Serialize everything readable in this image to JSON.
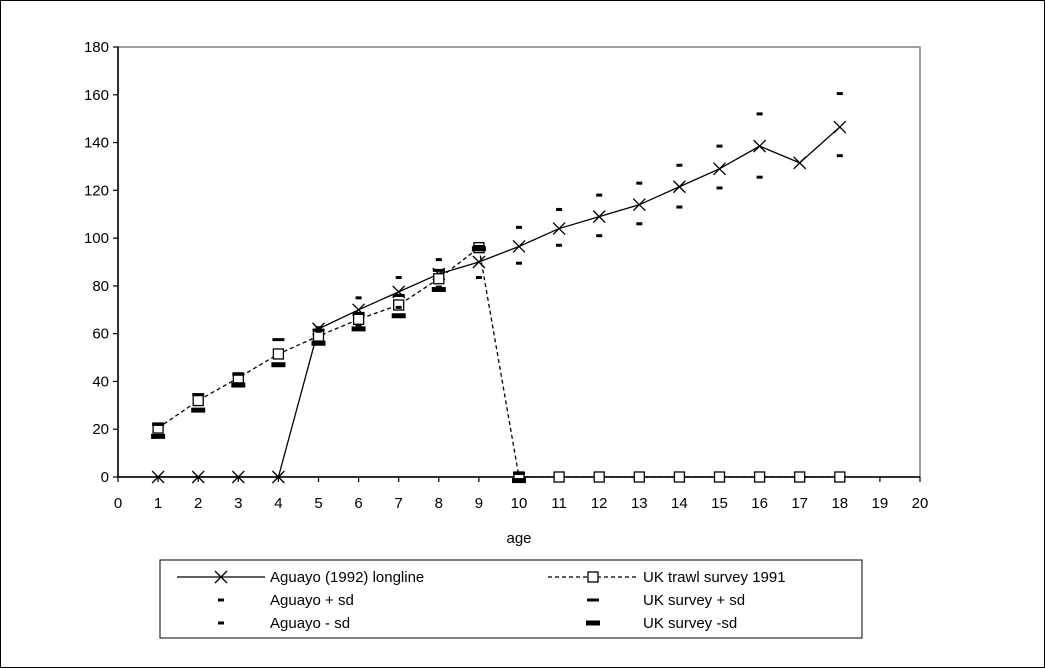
{
  "chart_data": {
    "type": "line",
    "title": "",
    "xlabel": "age",
    "ylabel": "",
    "xlim": [
      0,
      20
    ],
    "ylim": [
      0,
      180
    ],
    "x_ticks": [
      0,
      1,
      2,
      3,
      4,
      5,
      6,
      7,
      8,
      9,
      10,
      11,
      12,
      13,
      14,
      15,
      16,
      17,
      18,
      19,
      20
    ],
    "y_ticks": [
      0,
      20,
      40,
      60,
      80,
      100,
      120,
      140,
      160,
      180
    ],
    "grid": false,
    "legend_position": "bottom",
    "series": [
      {
        "name": "Aguayo (1992) longline",
        "marker": "x",
        "line": "solid",
        "color": "#000000",
        "x": [
          1,
          2,
          3,
          4,
          5,
          6,
          7,
          8,
          9,
          10,
          11,
          12,
          13,
          14,
          15,
          16,
          17,
          18
        ],
        "values": [
          0,
          0,
          0,
          0,
          62,
          70,
          77.5,
          85,
          90,
          96.5,
          104,
          109,
          114,
          121.5,
          129,
          138.5,
          131.5,
          146.5
        ]
      },
      {
        "name": "UK trawl survey 1991",
        "marker": "square",
        "line": "dashed",
        "color": "#000000",
        "x": [
          1,
          2,
          3,
          4,
          5,
          6,
          7,
          8,
          9,
          10,
          11,
          12,
          13,
          14,
          15,
          16,
          17,
          18
        ],
        "values": [
          20.5,
          32,
          41.5,
          51.5,
          59,
          66,
          72,
          83,
          96,
          0,
          0,
          0,
          0,
          0,
          0,
          0,
          0,
          0
        ]
      },
      {
        "name": "Aguayo + sd",
        "marker": "dash-small",
        "line": "none",
        "color": "#000000",
        "x": [
          5,
          6,
          7,
          8,
          9,
          10,
          11,
          12,
          13,
          14,
          15,
          16,
          18
        ],
        "values": [
          62.5,
          75,
          83.5,
          91,
          96,
          104.5,
          112,
          118,
          123,
          130.5,
          138.5,
          152,
          160.5
        ]
      },
      {
        "name": "Aguayo - sd",
        "marker": "dash-small",
        "line": "none",
        "color": "#000000",
        "x": [
          5,
          6,
          7,
          8,
          9,
          10,
          11,
          12,
          13,
          14,
          15,
          16,
          18
        ],
        "values": [
          61,
          63.5,
          71,
          79.5,
          83.5,
          89.5,
          97,
          101,
          106,
          113,
          121,
          125.5,
          134.5
        ]
      },
      {
        "name": "UK survey + sd",
        "marker": "dash-medium",
        "line": "none",
        "color": "#000000",
        "x": [
          1,
          2,
          3,
          4,
          5,
          6,
          7,
          8,
          9,
          10
        ],
        "values": [
          22,
          34.5,
          43,
          57.5,
          61.5,
          68.5,
          76,
          86.5,
          96.5,
          1.5
        ]
      },
      {
        "name": "UK survey -sd",
        "marker": "dash-large",
        "line": "none",
        "color": "#000000",
        "x": [
          1,
          2,
          3,
          4,
          5,
          6,
          7,
          8,
          9,
          10
        ],
        "values": [
          17,
          28,
          38.5,
          47,
          56,
          62,
          67.5,
          78.5,
          95.5,
          -1.5
        ]
      }
    ]
  }
}
